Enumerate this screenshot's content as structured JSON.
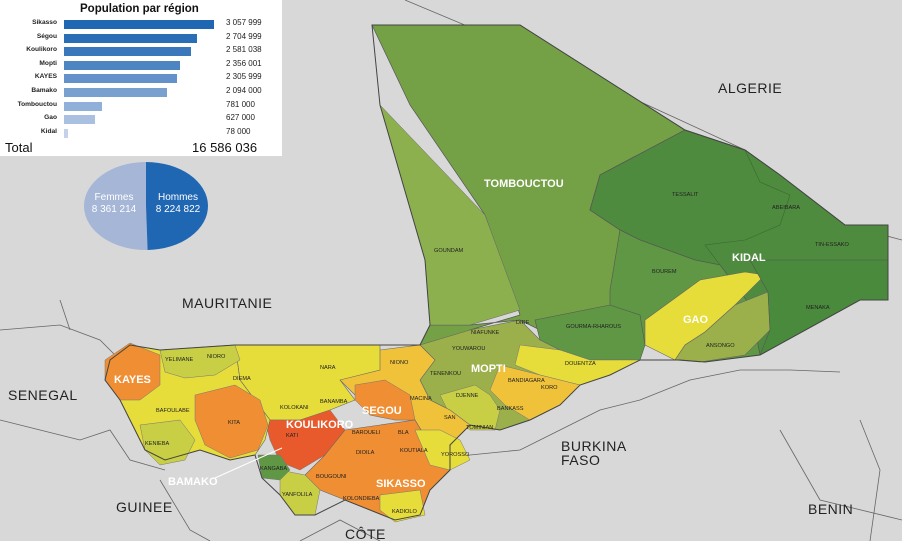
{
  "panel": {
    "title": "Population par région",
    "total_label": "Total",
    "total_value": "16 586 036",
    "colors": {
      "bar_dark": "#1f67b2",
      "bar_light": "#b5c6e4"
    },
    "regions": [
      {
        "name": "Sikasso",
        "value_text": "3 057 999",
        "value": 3057999
      },
      {
        "name": "Ségou",
        "value_text": "2 704 999",
        "value": 2704999
      },
      {
        "name": "Koulikoro",
        "value_text": "2 581 038",
        "value": 2581038
      },
      {
        "name": "Mopti",
        "value_text": "2 356 001",
        "value": 2356001
      },
      {
        "name": "KAYES",
        "value_text": "2 305 999",
        "value": 2305999
      },
      {
        "name": "Bamako",
        "value_text": "2 094 000",
        "value": 2094000
      },
      {
        "name": "Tombouctou",
        "value_text": "781 000",
        "value": 781000
      },
      {
        "name": "Gao",
        "value_text": "627 000",
        "value": 627000
      },
      {
        "name": "Kidal",
        "value_text": "78 000",
        "value": 78000
      }
    ]
  },
  "gender": {
    "femmes_label": "Femmes",
    "femmes_value": "8 361 214",
    "femmes_count": 8361214,
    "femmes_color": "#a5b6d6",
    "hommes_label": "Hommes",
    "hommes_value": "8 224 822",
    "hommes_count": 8224822,
    "hommes_color": "#1f67b2"
  },
  "map": {
    "countries": {
      "algerie": "ALGERIE",
      "mauritanie": "MAURITANIE",
      "senegal": "SENEGAL",
      "guinee": "GUINEE",
      "burkina_1": "BURKINA",
      "burkina_2": "FASO",
      "benin": "BENIN",
      "cote": "CÔTE"
    },
    "regions": {
      "tombouctou": "TOMBOUCTOU",
      "kidal": "KIDAL",
      "gao": "GAO",
      "mopti": "MOPTI",
      "kayes": "KAYES",
      "segou": "SEGOU",
      "koulikoro": "KOULIKORO",
      "sikasso": "SIKASSO",
      "bamako": "BAMAKO"
    },
    "cercles": [
      "GOUNDAM",
      "BOUREM",
      "TESSALIT",
      "ABEIBARA",
      "TIN-ESSAKO",
      "MENAKA",
      "ANSONGO",
      "GOURMA-RHAROUS",
      "NIAFUNKE",
      "DIRE",
      "YOUWAROU",
      "TENENKOU",
      "DOUENTZA",
      "BANDIAGARA",
      "KORO",
      "BANKASS",
      "DJENNE",
      "MACINA",
      "SAN",
      "TOMINIAN",
      "NIONO",
      "NARA",
      "NIORO",
      "YELIMANE",
      "DIEMA",
      "BAFOULABE",
      "KITA",
      "KENIEBA",
      "KOLOKANI",
      "BANAMBA",
      "KATI",
      "BAROUELI",
      "BLA",
      "KOUTIALA",
      "YOROSSO",
      "DIOILA",
      "BOUGOUNI",
      "KOLONDIEBA",
      "KADIOLO",
      "YANFOLILA",
      "KANGABA"
    ],
    "colors": {
      "north_green": "#4e8b3f",
      "mid_green": "#74a046",
      "olive": "#9bb04a",
      "yellow": "#e6dc3a",
      "yellow_orange": "#f0c23a",
      "orange": "#ef8e32",
      "red_orange": "#e8592c",
      "neighbour": "#d7d7d7",
      "sahara_bg": "#d9d9d9"
    }
  }
}
